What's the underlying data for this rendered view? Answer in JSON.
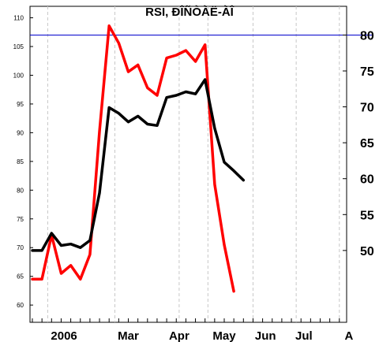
{
  "chart_data": {
    "type": "line",
    "title": "RSI, ĐÎÑÒÀË-ÀÎ",
    "xlabel": "",
    "ylabel": "",
    "x_ticks": [
      "2006",
      "Mar",
      "Apr",
      "May",
      "Jun",
      "Jul",
      "A"
    ],
    "y_left": {
      "range": [
        57,
        112
      ],
      "ticks": [
        60,
        65,
        70,
        75,
        80,
        85,
        90,
        95,
        100,
        105,
        110
      ]
    },
    "y_right": {
      "range": [
        40,
        84
      ],
      "ticks": [
        50,
        55,
        60,
        65,
        70,
        75,
        80
      ]
    },
    "reference_line": {
      "axis": "right",
      "value": 80,
      "color": "#0000cc"
    },
    "grid": {
      "vertical_dashed": true,
      "horizontal": false
    },
    "legend": "none",
    "series": [
      {
        "axis": "left",
        "color": "#ff0000",
        "values": [
          64.5,
          64.5,
          72.2,
          65.5,
          66.9,
          64.5,
          68.8,
          90.2,
          108.6,
          105.6,
          100.6,
          101.8,
          97.8,
          96.5,
          103.0,
          103.5,
          104.3,
          102.4,
          105.3,
          81.0,
          70.5,
          62.4
        ]
      },
      {
        "axis": "right",
        "color": "#000000",
        "values": [
          50.0,
          50.0,
          52.4,
          50.7,
          50.9,
          50.4,
          51.4,
          58.0,
          69.9,
          69.1,
          67.9,
          68.7,
          67.6,
          67.4,
          71.3,
          71.6,
          72.1,
          71.8,
          73.8,
          67.0,
          62.3,
          61.1,
          59.8
        ]
      }
    ]
  }
}
